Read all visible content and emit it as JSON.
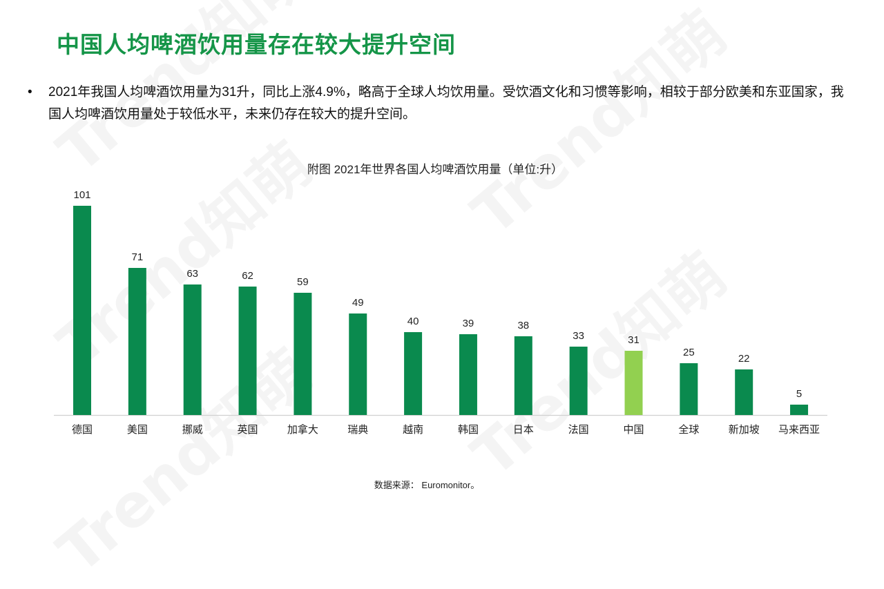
{
  "page": {
    "title": "中国人均啤酒饮用量存在较大提升空间",
    "bullet": "2021年我国人均啤酒饮用量为31升，同比上涨4.9%，略高于全球人均饮用量。受饮酒文化和习惯等影响，相较于部分欧美和东亚国家，我国人均啤酒饮用量处于较低水平，未来仍存在较大的提升空间。",
    "source": "数据来源： Euromonitor。",
    "watermark_text": "Trend知萌"
  },
  "chart_data": {
    "type": "bar",
    "title": "附图 2021年世界各国人均啤酒饮用量（单位:升）",
    "categories": [
      "德国",
      "美国",
      "挪威",
      "英国",
      "加拿大",
      "瑞典",
      "越南",
      "韩国",
      "日本",
      "法国",
      "中国",
      "全球",
      "新加坡",
      "马来西亚"
    ],
    "values": [
      101,
      71,
      63,
      62,
      59,
      49,
      40,
      39,
      38,
      33,
      31,
      25,
      22,
      5
    ],
    "ylim": [
      0,
      101
    ],
    "grid": false,
    "legend": "none",
    "bar_color": "#0a8a4e",
    "highlight_category": "中国",
    "highlight_color": "#92d050",
    "axis_color": "#d0d0d0"
  }
}
